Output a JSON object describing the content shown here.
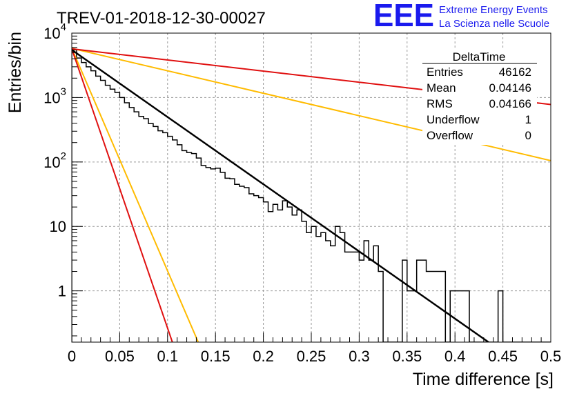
{
  "header": {
    "run_title": "TREV-01-2018-12-30-00027",
    "logo_text": "EEE",
    "logo_line1": "Extreme Energy Events",
    "logo_line2": "La Scienza nelle Scuole"
  },
  "stats_box": {
    "title": "DeltaTime",
    "rows": [
      {
        "label": "Entries",
        "value": "46162"
      },
      {
        "label": "Mean",
        "value": "0.04146"
      },
      {
        "label": "RMS",
        "value": "0.04166"
      },
      {
        "label": "Underflow",
        "value": "1"
      },
      {
        "label": "Overflow",
        "value": "0"
      }
    ]
  },
  "colors": {
    "histogram": "#000000",
    "fit": "#000000",
    "red_band": "#e01010",
    "orange_band": "#ffbb00",
    "grid": "#999999"
  },
  "chart_data": {
    "type": "line",
    "xlabel": "Time difference [s]",
    "ylabel": "Entries/bin",
    "xlim": [
      0,
      0.5
    ],
    "ylim": [
      0.16,
      10000
    ],
    "yscale": "log",
    "grid": true,
    "x_ticks": [
      {
        "v": 0,
        "label": "0"
      },
      {
        "v": 0.05,
        "label": "0.05"
      },
      {
        "v": 0.1,
        "label": "0.1"
      },
      {
        "v": 0.15,
        "label": "0.15"
      },
      {
        "v": 0.2,
        "label": "0.2"
      },
      {
        "v": 0.25,
        "label": "0.25"
      },
      {
        "v": 0.3,
        "label": "0.3"
      },
      {
        "v": 0.35,
        "label": "0.35"
      },
      {
        "v": 0.4,
        "label": "0.4"
      },
      {
        "v": 0.45,
        "label": "0.45"
      },
      {
        "v": 0.5,
        "label": "0.5"
      }
    ],
    "y_ticks": [
      {
        "v": 1,
        "label": "1"
      },
      {
        "v": 10,
        "label": "10"
      },
      {
        "v": 100,
        "base": "10",
        "exp": "2"
      },
      {
        "v": 1000,
        "base": "10",
        "exp": "3"
      },
      {
        "v": 10000,
        "base": "10",
        "exp": "4"
      }
    ],
    "histogram": {
      "bin_width": 0.005,
      "values": [
        5500,
        4100,
        3500,
        3000,
        2600,
        2150,
        1850,
        1550,
        1350,
        1200,
        1000,
        830,
        700,
        600,
        510,
        470,
        395,
        355,
        305,
        285,
        250,
        220,
        185,
        150,
        140,
        135,
        115,
        88,
        82,
        78,
        80,
        69,
        56,
        55,
        45,
        42,
        40,
        32,
        30,
        28,
        24,
        17,
        22,
        18,
        25,
        20,
        15,
        18,
        12,
        8,
        10,
        7,
        8,
        6,
        5,
        10,
        8,
        4,
        4,
        4,
        3,
        6,
        3,
        5,
        2,
        0,
        0,
        0,
        0,
        3,
        1,
        1,
        3,
        3,
        2,
        2,
        2,
        2,
        0,
        1,
        1,
        1,
        1,
        0,
        0,
        0,
        0,
        0,
        0,
        1,
        0,
        0,
        0,
        0,
        0,
        0,
        0,
        0,
        0,
        0
      ]
    },
    "series": [
      {
        "points": [
          [
            0,
            5500
          ],
          [
            0.435,
            0.16
          ]
        ]
      },
      {
        "points": [
          [
            0,
            5700
          ],
          [
            0.5,
            780
          ]
        ]
      },
      {
        "points": [
          [
            0,
            5700
          ],
          [
            0.105,
            0.16
          ]
        ]
      },
      {
        "points": [
          [
            0,
            5800
          ],
          [
            0.5,
            105
          ]
        ]
      },
      {
        "points": [
          [
            0,
            5800
          ],
          [
            0.132,
            0.16
          ]
        ]
      }
    ]
  }
}
